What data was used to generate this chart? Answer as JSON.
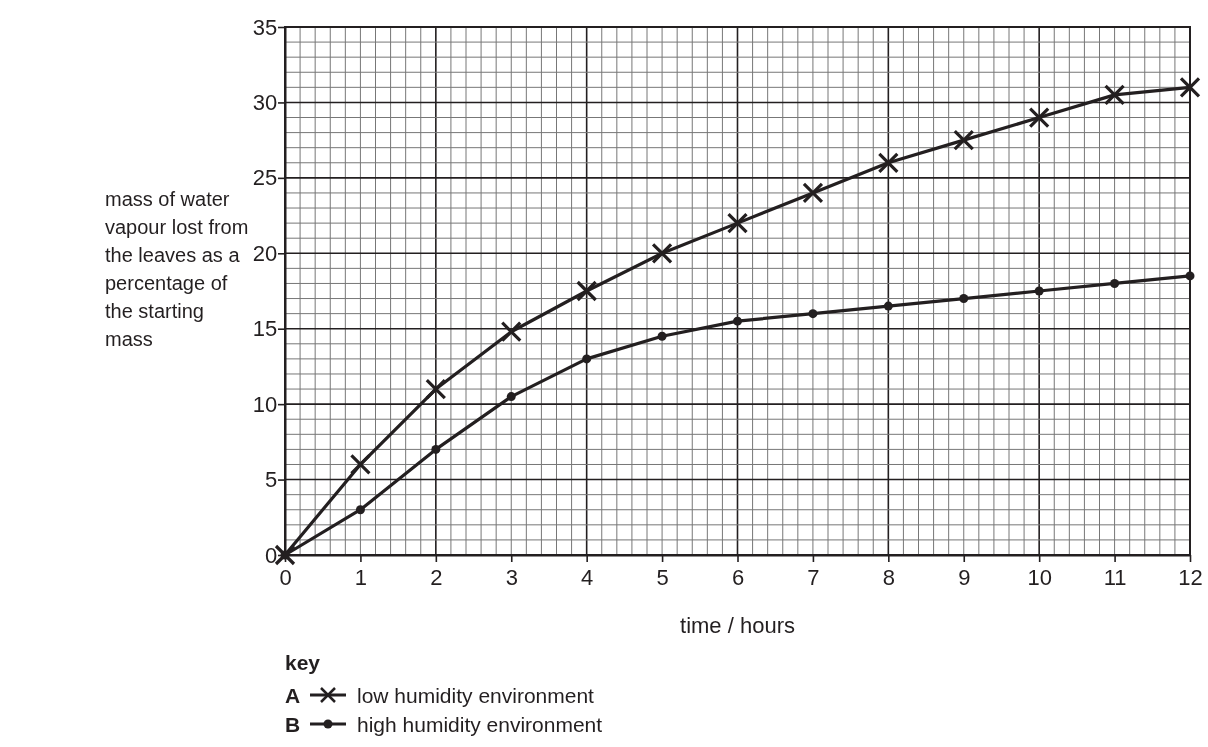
{
  "chart_data": {
    "type": "line",
    "xlabel": "time / hours",
    "ylabel": "mass of water vapour lost from the leaves as a percentage of the starting mass",
    "legend_title": "key",
    "legend": "bottom left",
    "grid": true,
    "x": [
      0,
      1,
      2,
      3,
      4,
      5,
      6,
      7,
      8,
      9,
      10,
      11,
      12
    ],
    "xlim": [
      0,
      12
    ],
    "xticks": [
      0,
      1,
      2,
      3,
      4,
      5,
      6,
      7,
      8,
      9,
      10,
      11,
      12
    ],
    "ylim": [
      0,
      35
    ],
    "yticks": [
      0,
      5,
      10,
      15,
      20,
      25,
      30,
      35
    ],
    "series": [
      {
        "name": "low humidity environment",
        "color": "#231f20",
        "marker": "cross",
        "values": [
          0,
          6,
          11,
          14.8,
          17.5,
          20,
          22,
          24,
          26,
          27.5,
          29,
          30.5,
          31
        ]
      },
      {
        "name": "high humidity environment",
        "color": "#231f20",
        "marker": "circle",
        "values": [
          0,
          3,
          7,
          10.5,
          13,
          14.5,
          15.5,
          16,
          16.5,
          17,
          17.5,
          18,
          18.5
        ]
      }
    ],
    "annotations": [
      "A",
      "B"
    ]
  }
}
